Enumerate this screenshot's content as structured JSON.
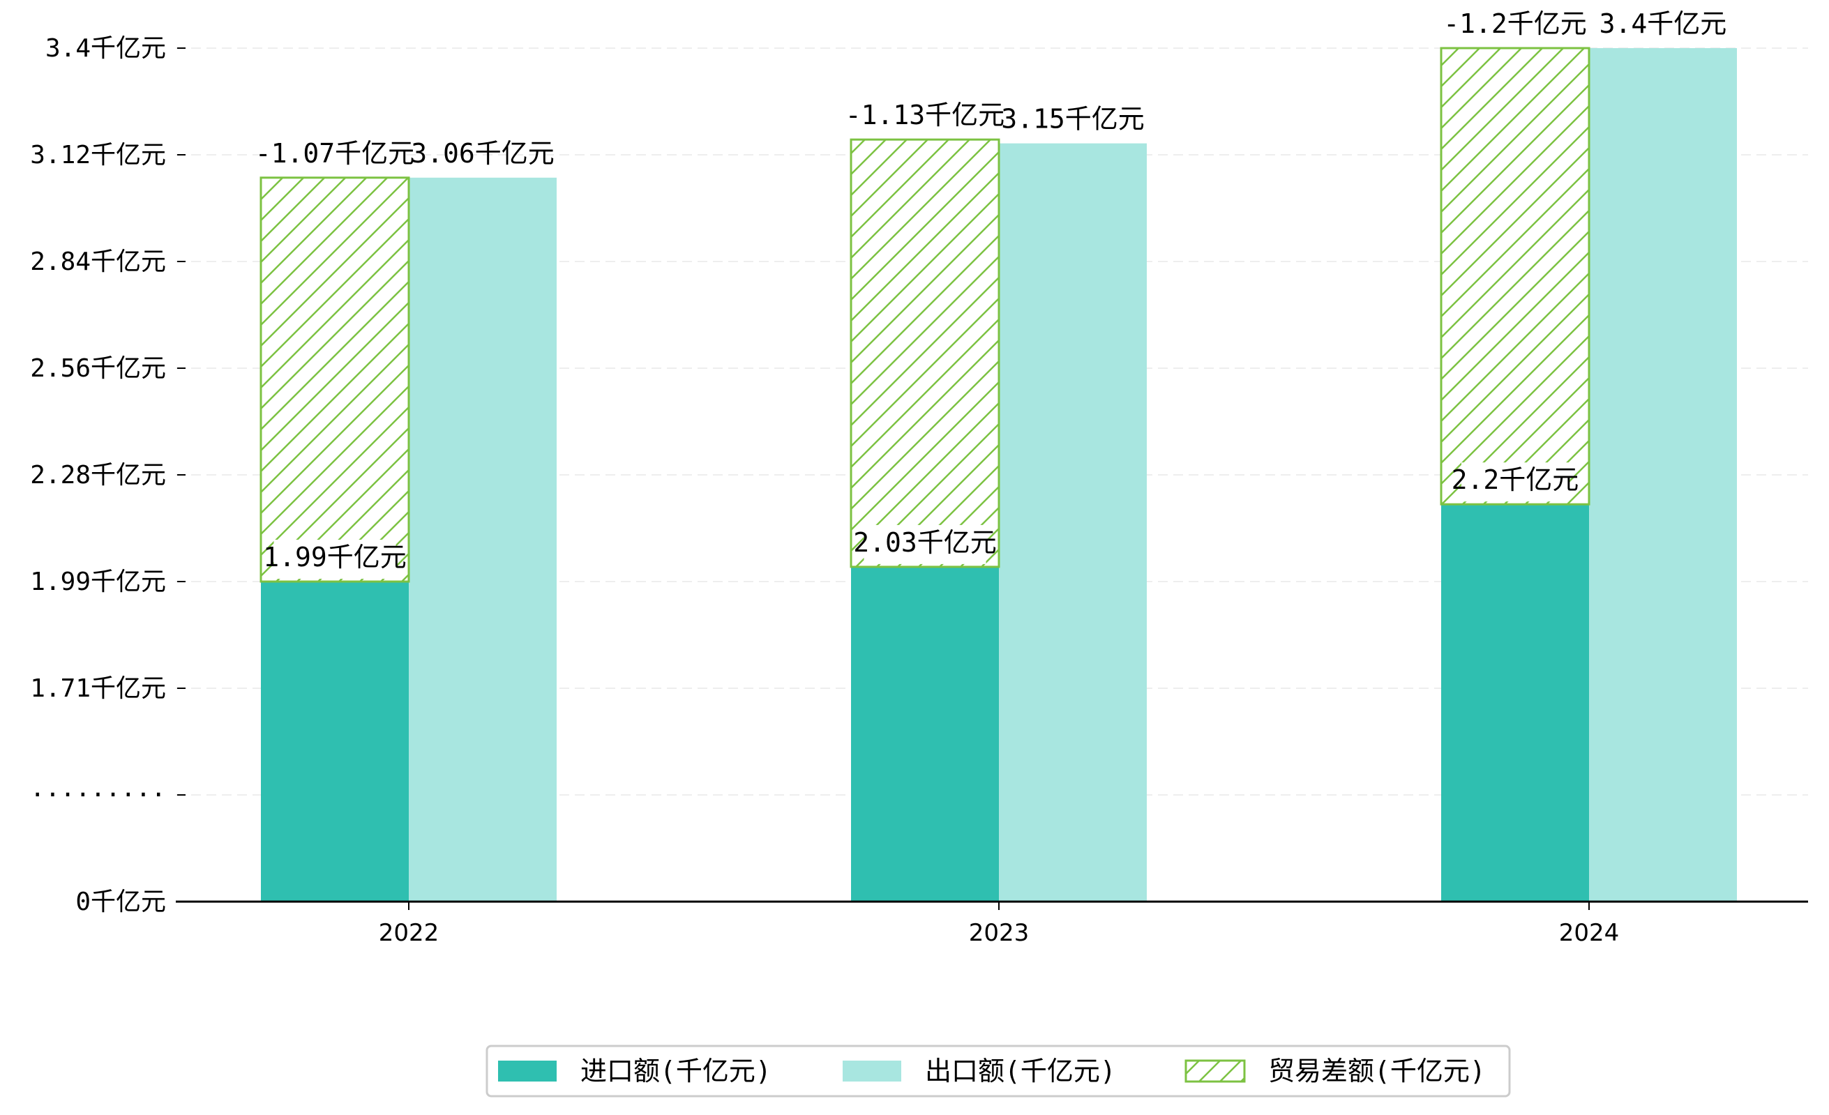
{
  "chart_data": {
    "type": "bar",
    "categories": [
      "2022",
      "2023",
      "2024"
    ],
    "series": [
      {
        "name": "进口额(千亿元)",
        "values": [
          1.99,
          2.03,
          2.2
        ],
        "color": "#2fbfb0",
        "labels": [
          "1.99千亿元",
          "2.03千亿元",
          "2.2千亿元"
        ]
      },
      {
        "name": "出口额(千亿元)",
        "values": [
          3.06,
          3.15,
          3.4
        ],
        "color": "#a8e6e0",
        "labels": [
          "3.06千亿元",
          "3.15千亿元",
          "3.4千亿元"
        ]
      },
      {
        "name": "贸易差额(千亿元)",
        "values": [
          -1.07,
          -1.13,
          -1.2
        ],
        "color": "#7cc242",
        "hatch": true,
        "labels": [
          "-1.07千亿元",
          "-1.13千亿元",
          "-1.2千亿元"
        ]
      }
    ],
    "y_ticks": [
      "0千亿元",
      "·········",
      "1.71千亿元",
      "1.99千亿元",
      "2.28千亿元",
      "2.56千亿元",
      "2.84千亿元",
      "3.12千亿元",
      "3.4千亿元"
    ],
    "y_tick_values": [
      0,
      1.43,
      1.71,
      1.99,
      2.28,
      2.56,
      2.84,
      3.12,
      3.4
    ],
    "ylim": [
      0,
      3.4
    ],
    "axis_break": true,
    "grid": "horizontal dashed",
    "legend_position": "bottom-center"
  }
}
